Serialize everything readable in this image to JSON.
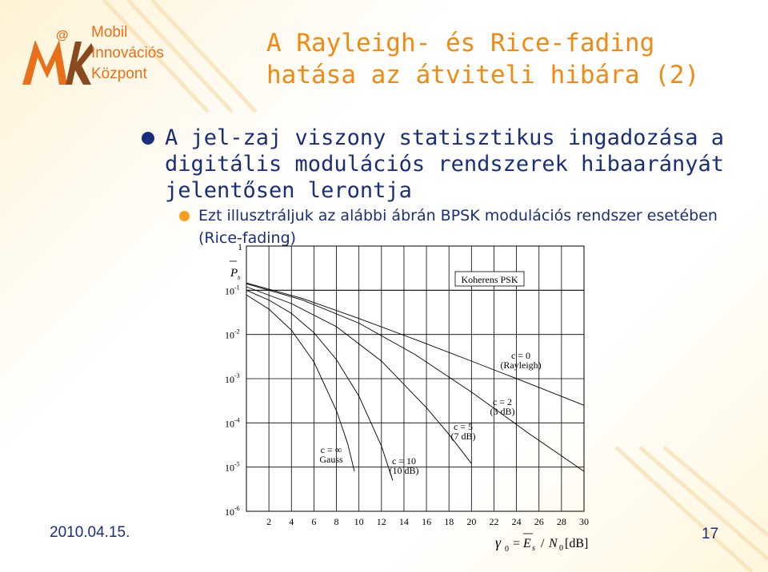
{
  "logo": {
    "at": "@",
    "lines": [
      "Mobil",
      "Innovációs",
      "Központ"
    ],
    "colors": {
      "orange": "#e8701a",
      "brown": "#8a4a20"
    }
  },
  "slide": {
    "title_line1": "A Rayleigh- és Rice-fading",
    "title_line2": "hatása az átviteli hibára (2)",
    "bullet1": "A jel-zaj viszony statisztikus ingadozása a digitális modulációs rendszerek hibaarányát jelentősen lerontja",
    "bullet2": "Ezt illusztráljuk az alábbi ábrán BPSK modulációs rendszer esetében (Rice-fading)",
    "date": "2010.04.15.",
    "page_number": "17"
  },
  "chart_data": {
    "type": "line",
    "yscale": "log",
    "ylim": [
      1e-06,
      1
    ],
    "xlim": [
      0,
      30
    ],
    "y_ticks": [
      {
        "value": 1,
        "base": "1",
        "exp": ""
      },
      {
        "value": 0.1,
        "base": "10",
        "exp": "-1"
      },
      {
        "value": 0.01,
        "base": "10",
        "exp": "-2"
      },
      {
        "value": 0.001,
        "base": "10",
        "exp": "-3"
      },
      {
        "value": 0.0001,
        "base": "10",
        "exp": "-4"
      },
      {
        "value": 1e-05,
        "base": "10",
        "exp": "-5"
      },
      {
        "value": 1e-06,
        "base": "10",
        "exp": "-6"
      }
    ],
    "x_ticks": [
      "2",
      "4",
      "6",
      "8",
      "10",
      "12",
      "14",
      "16",
      "18",
      "20",
      "22",
      "24",
      "26",
      "28",
      "30"
    ],
    "ylabel": {
      "symbol": "P",
      "sub": "b"
    },
    "xlabel": {
      "gamma": "γ",
      "gamma_sub": "0",
      "eq": "=",
      "e": "E",
      "e_sub": "s",
      "slash": "/",
      "n": "N",
      "n_sub": "0",
      "unit": "[dB]"
    },
    "grid": true,
    "series": [
      {
        "name": "c = ∞ Gauss",
        "x": [
          0,
          2,
          4,
          6,
          8,
          9,
          9.6
        ],
        "y": [
          0.0786,
          0.0375,
          0.0125,
          0.0024,
          0.00019,
          3.4e-05,
          8e-06
        ]
      },
      {
        "name": "c = 10 (10 dB)",
        "x": [
          0,
          2,
          4,
          6,
          8,
          10,
          12,
          13
        ],
        "y": [
          0.1,
          0.06,
          0.03,
          0.011,
          0.0027,
          0.0004,
          3e-05,
          5e-06
        ]
      },
      {
        "name": "c = 5 (7 dB)",
        "x": [
          0,
          4,
          8,
          12,
          16,
          18,
          20
        ],
        "y": [
          0.12,
          0.05,
          0.015,
          0.0025,
          0.00022,
          5.5e-05,
          1.2e-05
        ]
      },
      {
        "name": "c = 2 (3 dB)",
        "x": [
          0,
          5,
          10,
          15,
          20,
          25,
          30
        ],
        "y": [
          0.14,
          0.06,
          0.018,
          0.0035,
          0.0005,
          6e-05,
          8e-06
        ]
      },
      {
        "name": "c = 0 (Rayleigh)",
        "x": [
          0,
          5,
          10,
          15,
          20,
          25,
          30
        ],
        "y": [
          0.146,
          0.065,
          0.023,
          0.0077,
          0.0025,
          0.0008,
          0.00025
        ]
      },
      {
        "name": "Koherens PSK",
        "x": [
          0,
          30
        ],
        "y": [
          0.1,
          0.1
        ]
      }
    ],
    "annotations": [
      {
        "id": "koherens",
        "lines": [
          "Koherens PSK"
        ],
        "boxed": true
      },
      {
        "id": "c0",
        "lines": [
          "c = 0",
          "(Rayleigh)"
        ],
        "boxed": false
      },
      {
        "id": "c2",
        "lines": [
          "c = 2",
          "(3 dB)"
        ],
        "boxed": false
      },
      {
        "id": "c5",
        "lines": [
          "c = 5",
          "(7 dB)"
        ],
        "boxed": false
      },
      {
        "id": "cinf",
        "lines": [
          "c = ∞",
          "Gauss"
        ],
        "boxed": false
      },
      {
        "id": "c10",
        "lines": [
          "c = 10",
          "(10 dB)"
        ],
        "boxed": false
      }
    ]
  }
}
